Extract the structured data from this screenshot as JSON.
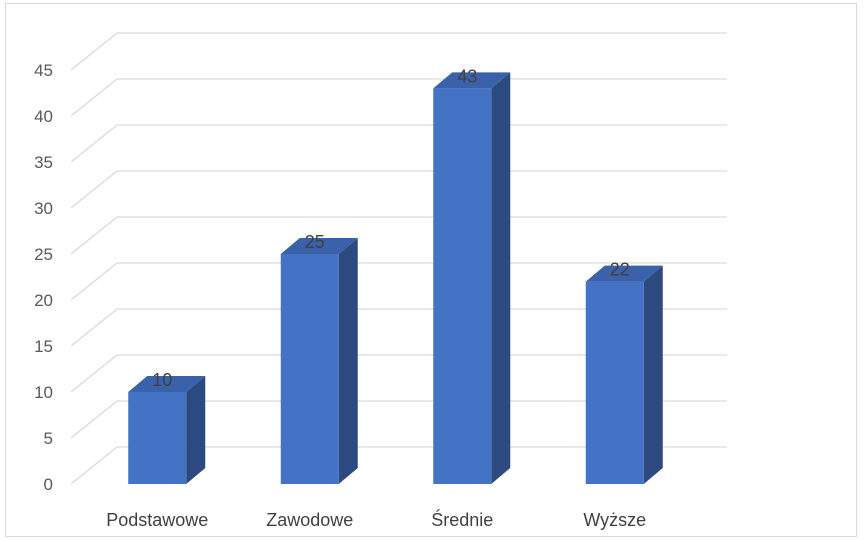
{
  "chart_data": {
    "type": "bar",
    "style": "3d-column",
    "categories": [
      "Podstawowe",
      "Zawodowe",
      "Średnie",
      "Wyższe"
    ],
    "values": [
      10,
      25,
      43,
      22
    ],
    "data_labels": [
      "10",
      "25",
      "43",
      "22"
    ],
    "yticks": [
      "0",
      "5",
      "10",
      "15",
      "20",
      "25",
      "30",
      "35",
      "40",
      "45"
    ],
    "ylim": [
      0,
      45
    ],
    "title": "",
    "xlabel": "",
    "ylabel": "",
    "grid": true,
    "legend": "none",
    "colors": {
      "bar_front": "#4472c4",
      "bar_side": "#2c4a80",
      "bar_top": "#3a61a9",
      "grid": "#d9d9d9"
    }
  }
}
